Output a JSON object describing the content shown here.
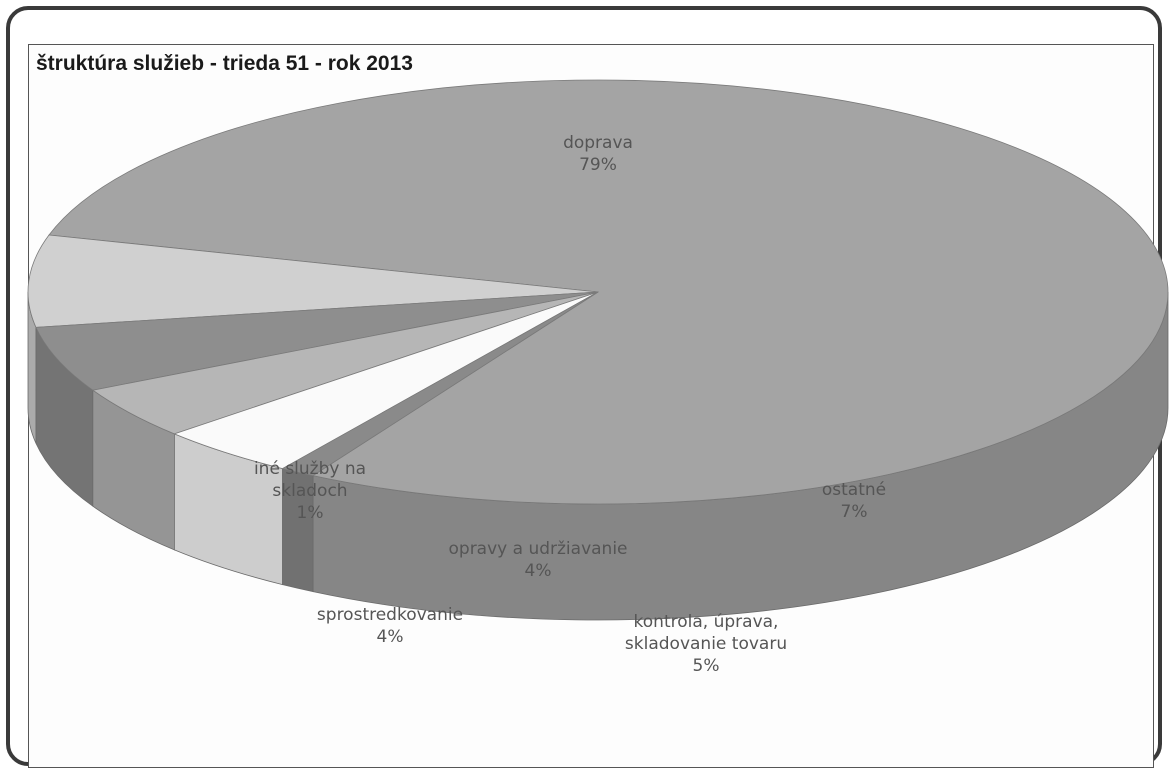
{
  "chart_data": {
    "type": "pie",
    "title": "štruktúra služieb - trieda 51 - rok 2013",
    "slices": [
      {
        "name": "doprava",
        "value": 79,
        "label": [
          "doprava",
          "79%"
        ],
        "color": "#a4a4a4"
      },
      {
        "name": "ostatné",
        "value": 7,
        "label": [
          "ostatné",
          "7%"
        ],
        "color": "#d0d0d0"
      },
      {
        "name": "kontrola, úprava, skladovanie tovaru",
        "value": 5,
        "label": [
          "kontrola, úprava,",
          "skladovanie tovaru",
          "5%"
        ],
        "color": "#8e8e8e"
      },
      {
        "name": "opravy a udržiavanie",
        "value": 4,
        "label": [
          "opravy a udržiavanie",
          "4%"
        ],
        "color": "#b6b6b6"
      },
      {
        "name": "sprostredkovanie",
        "value": 4,
        "label": [
          "sprostredkovanie",
          "4%"
        ],
        "color": "#fafafa"
      },
      {
        "name": "iné služby na skladoch",
        "value": 1,
        "label": [
          "iné služby na",
          "skladoch",
          "1%"
        ],
        "color": "#8a8a8a"
      }
    ],
    "legend": "none",
    "style": "3d"
  }
}
